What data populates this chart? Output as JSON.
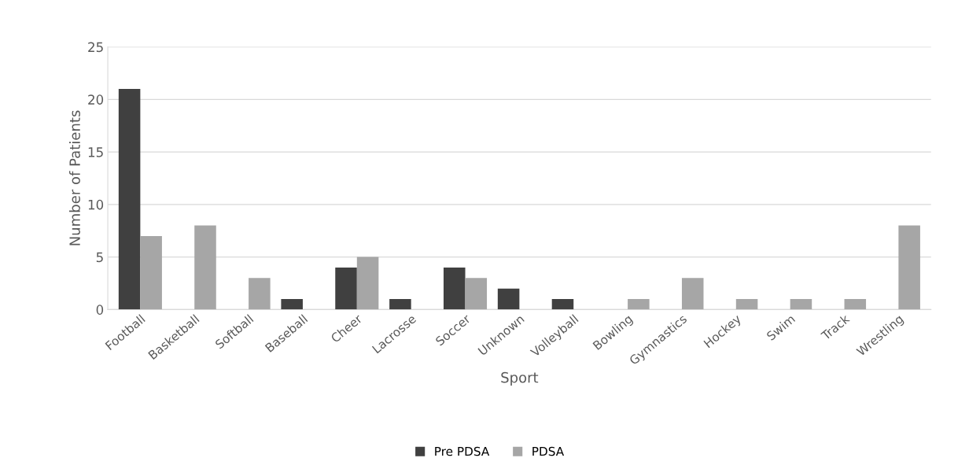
{
  "chart_data": {
    "type": "bar",
    "xlabel": "Sport",
    "ylabel": "Number of Patients",
    "categories": [
      "Football",
      "Basketball",
      "Softball",
      "Baseball",
      "Cheer",
      "Lacrosse",
      "Soccer",
      "Unknown",
      "Volleyball",
      "Bowling",
      "Gymnastics",
      "Hockey",
      "Swim",
      "Track",
      "Wrestling"
    ],
    "series": [
      {
        "name": "Pre PDSA",
        "color": "#404040",
        "values": [
          21,
          0,
          0,
          1,
          4,
          1,
          4,
          2,
          1,
          0,
          0,
          0,
          0,
          0,
          0
        ]
      },
      {
        "name": "PDSA",
        "color": "#a6a6a6",
        "values": [
          7,
          8,
          3,
          0,
          5,
          0,
          3,
          0,
          0,
          1,
          3,
          1,
          1,
          1,
          8
        ]
      }
    ],
    "ylim": [
      0,
      25
    ],
    "yticks": [
      0,
      5,
      10,
      15,
      20,
      25
    ],
    "grid": "y",
    "legend": "bottom"
  }
}
